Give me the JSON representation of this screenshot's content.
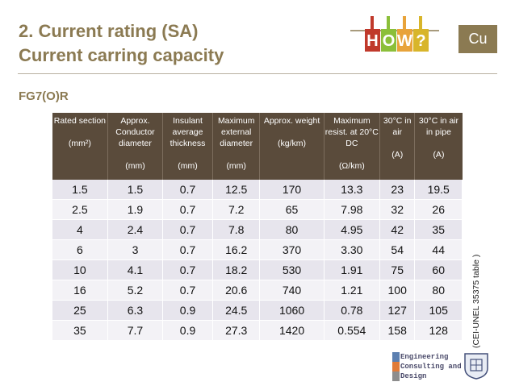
{
  "header": {
    "title_line1": "2. Current rating (SA)",
    "title_line2": "Current carring capacity",
    "badge": "Cu"
  },
  "logo": {
    "letters": [
      "H",
      "O",
      "W",
      "?"
    ],
    "colors": [
      "#c0392b",
      "#8bbf3a",
      "#e8a33a",
      "#d8b52a"
    ]
  },
  "section": {
    "subtitle": "FG7(O)R"
  },
  "table": {
    "columns": [
      {
        "label": "Rated section",
        "unit": "(mm²)"
      },
      {
        "label": "Approx. Conductor diameter",
        "unit": "(mm)"
      },
      {
        "label": "Insulant average thickness",
        "unit": "(mm)"
      },
      {
        "label": "Maximum external diameter",
        "unit": "(mm)"
      },
      {
        "label": "Approx. weight",
        "unit": "(kg/km)"
      },
      {
        "label": "Maximum resist. at 20°C DC",
        "unit": "(Ω/km)"
      },
      {
        "label": "30°C in air",
        "unit": "(A)"
      },
      {
        "label": "30°C in air in pipe",
        "unit": "(A)"
      }
    ],
    "rows": [
      [
        "1.5",
        "1.5",
        "0.7",
        "12.5",
        "170",
        "13.3",
        "23",
        "19.5"
      ],
      [
        "2.5",
        "1.9",
        "0.7",
        "7.2",
        "65",
        "7.98",
        "32",
        "26"
      ],
      [
        "4",
        "2.4",
        "0.7",
        "7.8",
        "80",
        "4.95",
        "42",
        "35"
      ],
      [
        "6",
        "3",
        "0.7",
        "16.2",
        "370",
        "3.30",
        "54",
        "44"
      ],
      [
        "10",
        "4.1",
        "0.7",
        "18.2",
        "530",
        "1.91",
        "75",
        "60"
      ],
      [
        "16",
        "5.2",
        "0.7",
        "20.6",
        "740",
        "1.21",
        "100",
        "80"
      ],
      [
        "25",
        "6.3",
        "0.9",
        "24.5",
        "1060",
        "0.78",
        "127",
        "105"
      ],
      [
        "35",
        "7.7",
        "0.9",
        "27.3",
        "1420",
        "0.554",
        "158",
        "128"
      ]
    ]
  },
  "side_note": "(CEI-UNEL 35375  table )",
  "footer_logo": {
    "line1": "Engineering",
    "line2": "Consulting and",
    "line3": "Design"
  }
}
